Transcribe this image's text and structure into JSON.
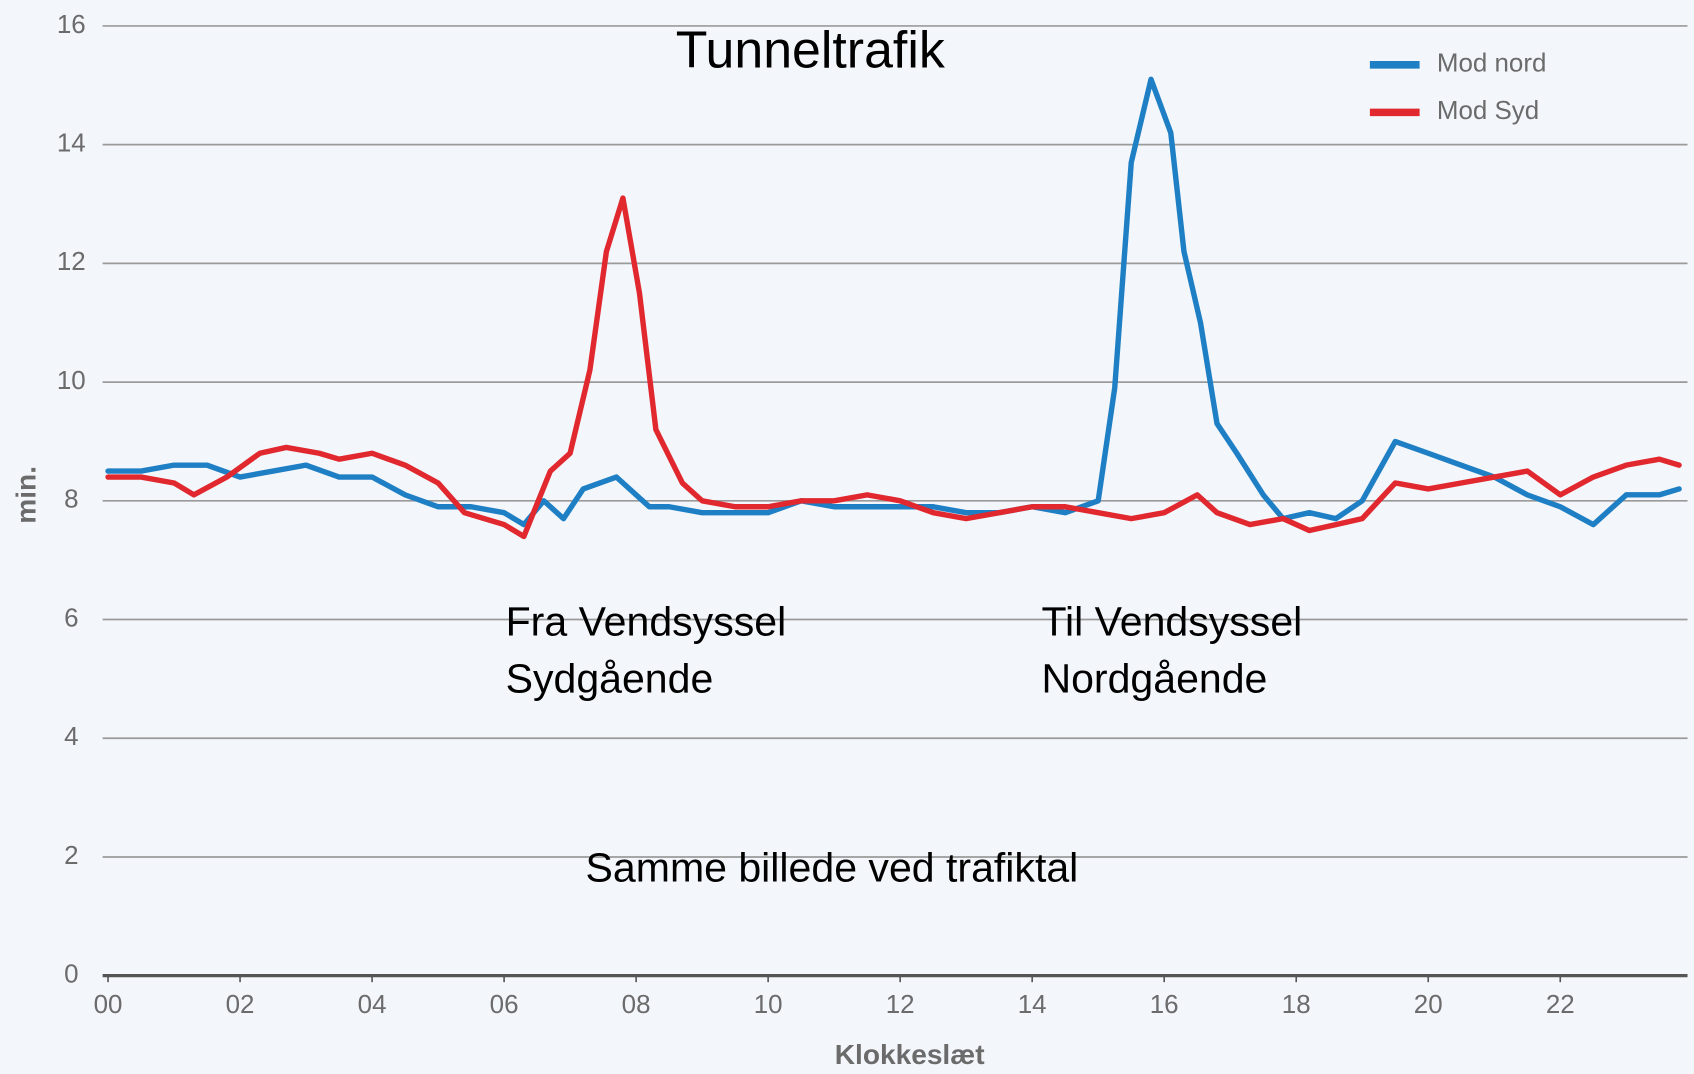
{
  "chart_data": {
    "type": "line",
    "title": "Tunneltrafik",
    "xlabel": "Klokkeslæt",
    "ylabel": "min.",
    "annotations": [
      [
        "Fra Vendsyssel",
        "Sydgående"
      ],
      [
        "Til Vendsyssel",
        "Nordgående"
      ],
      [
        "Samme billede ved trafiktal"
      ]
    ],
    "xlim": [
      0,
      24
    ],
    "ylim": [
      0,
      16
    ],
    "xticks": [
      {
        "value": 0,
        "label": "00"
      },
      {
        "value": 2,
        "label": "02"
      },
      {
        "value": 4,
        "label": "04"
      },
      {
        "value": 6,
        "label": "06"
      },
      {
        "value": 8,
        "label": "08"
      },
      {
        "value": 10,
        "label": "10"
      },
      {
        "value": 12,
        "label": "12"
      },
      {
        "value": 14,
        "label": "14"
      },
      {
        "value": 16,
        "label": "16"
      },
      {
        "value": 18,
        "label": "18"
      },
      {
        "value": 20,
        "label": "20"
      },
      {
        "value": 22,
        "label": "22"
      }
    ],
    "yticks": [
      0,
      2,
      4,
      6,
      8,
      10,
      12,
      14,
      16
    ],
    "grid": true,
    "legend": "upper right",
    "series": [
      {
        "name": "Mod nord",
        "color": "#1f7fc4",
        "x": [
          0,
          0.5,
          1,
          1.5,
          2,
          2.5,
          3,
          3.5,
          4,
          4.5,
          5,
          5.5,
          6,
          6.3,
          6.6,
          6.9,
          7.2,
          7.7,
          8.2,
          8.5,
          9,
          9.5,
          10,
          10.5,
          11,
          11.5,
          12,
          12.5,
          13,
          13.5,
          14,
          14.5,
          15,
          15.25,
          15.5,
          15.8,
          16.1,
          16.3,
          16.55,
          16.8,
          17.1,
          17.5,
          17.8,
          18.2,
          18.6,
          19,
          19.5,
          20,
          20.5,
          21,
          21.5,
          22,
          22.5,
          23,
          23.5,
          23.8
        ],
        "values": [
          8.5,
          8.5,
          8.6,
          8.6,
          8.4,
          8.5,
          8.6,
          8.4,
          8.4,
          8.1,
          7.9,
          7.9,
          7.8,
          7.6,
          8.0,
          7.7,
          8.2,
          8.4,
          7.9,
          7.9,
          7.8,
          7.8,
          7.8,
          8.0,
          7.9,
          7.9,
          7.9,
          7.9,
          7.8,
          7.8,
          7.9,
          7.8,
          8.0,
          9.9,
          13.7,
          15.1,
          14.2,
          12.2,
          11.0,
          9.3,
          8.8,
          8.1,
          7.7,
          7.8,
          7.7,
          8.0,
          9.0,
          8.8,
          8.6,
          8.4,
          8.1,
          7.9,
          7.6,
          8.1,
          8.1,
          8.2
        ]
      },
      {
        "name": "Mod Syd",
        "color": "#e0282e",
        "x": [
          0,
          0.5,
          1,
          1.3,
          1.8,
          2.3,
          2.7,
          3.2,
          3.5,
          4,
          4.5,
          5,
          5.4,
          6,
          6.3,
          6.7,
          7.0,
          7.3,
          7.55,
          7.8,
          8.05,
          8.3,
          8.7,
          9.0,
          9.5,
          10,
          10.5,
          11,
          11.5,
          12,
          12.5,
          13,
          13.5,
          14,
          14.5,
          15,
          15.5,
          16,
          16.5,
          16.8,
          17.3,
          17.8,
          18.2,
          18.6,
          19,
          19.5,
          20,
          20.5,
          21,
          21.5,
          22,
          22.5,
          23,
          23.5,
          23.8
        ],
        "values": [
          8.4,
          8.4,
          8.3,
          8.1,
          8.4,
          8.8,
          8.9,
          8.8,
          8.7,
          8.8,
          8.6,
          8.3,
          7.8,
          7.6,
          7.4,
          8.5,
          8.8,
          10.2,
          12.2,
          13.1,
          11.5,
          9.2,
          8.3,
          8.0,
          7.9,
          7.9,
          8.0,
          8.0,
          8.1,
          8.0,
          7.8,
          7.7,
          7.8,
          7.9,
          7.9,
          7.8,
          7.7,
          7.8,
          8.1,
          7.8,
          7.6,
          7.7,
          7.5,
          7.6,
          7.7,
          8.3,
          8.2,
          8.3,
          8.4,
          8.5,
          8.1,
          8.4,
          8.6,
          8.7,
          8.6
        ]
      }
    ]
  }
}
